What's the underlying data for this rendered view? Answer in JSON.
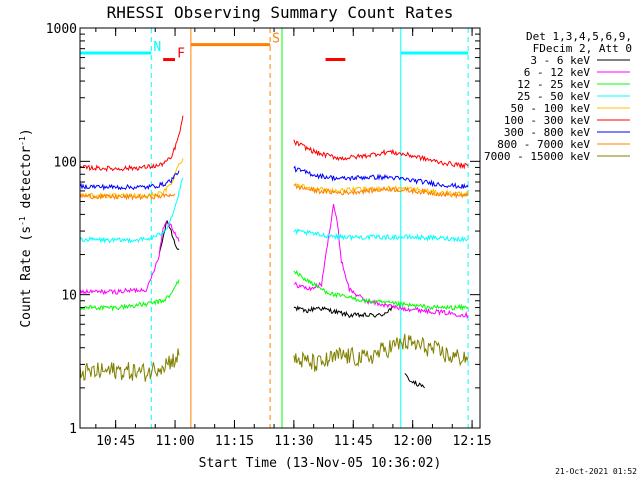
{
  "chart_data": {
    "type": "line",
    "title": "RHESSI Observing Summary Count Rates",
    "xlabel": "Start Time (13-Nov-05 10:36:02)",
    "ylabel_main": "Count Rate (s",
    "ylabel_sup1": "-1",
    "ylabel_mid": " detector",
    "ylabel_sup2": "-1",
    "ylabel_end": ")",
    "date_stamp": "21-Oct-2021 01:52",
    "y_scale": "log",
    "xlim": [
      "10:36",
      "12:17"
    ],
    "ylim": [
      1,
      1000
    ],
    "x_ticks": [
      "10:45",
      "11:00",
      "11:15",
      "11:30",
      "11:45",
      "12:00",
      "12:15"
    ],
    "y_ticks": [
      "1",
      "10",
      "100",
      "1000"
    ],
    "legend_header": [
      "Det 1,3,4,5,6,9,",
      "FDecim 2, Att 0"
    ],
    "legend_placement": "right",
    "series": [
      {
        "name": "3 - 6 keV",
        "color": "#000000",
        "segments": [
          [
            [
              "10:56",
              20
            ],
            [
              "10:57",
              27
            ],
            [
              "10:58",
              36
            ],
            [
              "10:59",
              30
            ],
            [
              "11:00",
              24
            ],
            [
              "11:01",
              22
            ]
          ],
          [
            [
              "11:30",
              8
            ],
            [
              "11:33",
              7.5
            ],
            [
              "11:36",
              8
            ],
            [
              "11:40",
              7.5
            ],
            [
              "11:44",
              7
            ],
            [
              "11:48",
              7
            ],
            [
              "11:52",
              7
            ],
            [
              "11:55",
              8
            ]
          ],
          [
            [
              "11:58",
              2.5
            ],
            [
              "12:00",
              2.2
            ],
            [
              "12:03",
              2
            ]
          ]
        ]
      },
      {
        "name": "6 - 12 keV",
        "color": "#ff00ff",
        "segments": [
          [
            [
              "10:36",
              10.5
            ],
            [
              "10:45",
              10.5
            ],
            [
              "10:53",
              11
            ],
            [
              "10:56",
              20
            ],
            [
              "10:57",
              32
            ],
            [
              "10:58",
              35
            ],
            [
              "10:59",
              33
            ],
            [
              "11:00",
              29
            ],
            [
              "11:01",
              25
            ]
          ],
          [
            [
              "11:30",
              12
            ],
            [
              "11:34",
              11
            ],
            [
              "11:37",
              12
            ],
            [
              "11:39",
              30
            ],
            [
              "11:40",
              48
            ],
            [
              "11:41",
              34
            ],
            [
              "11:42",
              18
            ],
            [
              "11:44",
              11
            ],
            [
              "11:48",
              9
            ],
            [
              "11:56",
              8
            ],
            [
              "12:05",
              7.5
            ],
            [
              "12:14",
              7
            ]
          ]
        ]
      },
      {
        "name": "12 - 25 keV",
        "color": "#00ff00",
        "segments": [
          [
            [
              "10:36",
              8
            ],
            [
              "10:45",
              8
            ],
            [
              "10:53",
              8.5
            ],
            [
              "10:57",
              9
            ],
            [
              "10:59",
              10
            ],
            [
              "11:01",
              13
            ]
          ],
          [
            [
              "11:30",
              15
            ],
            [
              "11:33",
              13
            ],
            [
              "11:37",
              11
            ],
            [
              "11:40",
              10
            ],
            [
              "11:44",
              9.5
            ],
            [
              "11:48",
              9
            ],
            [
              "11:56",
              8.5
            ],
            [
              "12:05",
              8
            ],
            [
              "12:14",
              8
            ]
          ]
        ]
      },
      {
        "name": "25 - 50 keV",
        "color": "#00ffff",
        "segments": [
          [
            [
              "10:36",
              26
            ],
            [
              "10:45",
              25.5
            ],
            [
              "10:53",
              26
            ],
            [
              "10:56",
              28
            ],
            [
              "10:58",
              32
            ],
            [
              "11:00",
              45
            ],
            [
              "11:02",
              75
            ]
          ],
          [
            [
              "11:30",
              30
            ],
            [
              "11:37",
              28
            ],
            [
              "11:44",
              27
            ],
            [
              "11:52",
              27
            ],
            [
              "12:00",
              27
            ],
            [
              "12:07",
              26.5
            ],
            [
              "12:14",
              26
            ]
          ]
        ]
      },
      {
        "name": "50 - 100 keV",
        "color": "#ffbf00",
        "segments": [
          [
            [
              "10:36",
              56
            ],
            [
              "10:45",
              55
            ],
            [
              "10:53",
              55
            ],
            [
              "10:57",
              58
            ],
            [
              "10:59",
              68
            ],
            [
              "11:01",
              95
            ],
            [
              "11:02",
              105
            ]
          ],
          [
            [
              "11:30",
              68
            ],
            [
              "11:35",
              62
            ],
            [
              "11:41",
              60
            ],
            [
              "11:48",
              62
            ],
            [
              "11:54",
              63
            ],
            [
              "12:00",
              62
            ],
            [
              "12:07",
              58
            ],
            [
              "12:14",
              57
            ]
          ]
        ]
      },
      {
        "name": "100 - 300 keV",
        "color": "#ff0000",
        "segments": [
          [
            [
              "10:36",
              90
            ],
            [
              "10:45",
              88
            ],
            [
              "10:52",
              90
            ],
            [
              "10:56",
              93
            ],
            [
              "10:59",
              105
            ],
            [
              "11:01",
              155
            ],
            [
              "11:02",
              220
            ]
          ],
          [
            [
              "11:30",
              140
            ],
            [
              "11:36",
              115
            ],
            [
              "11:42",
              105
            ],
            [
              "11:48",
              110
            ],
            [
              "11:54",
              118
            ],
            [
              "12:00",
              110
            ],
            [
              "12:07",
              98
            ],
            [
              "12:14",
              92
            ]
          ]
        ]
      },
      {
        "name": "300 - 800 keV",
        "color": "#0000ff",
        "segments": [
          [
            [
              "10:36",
              65
            ],
            [
              "10:45",
              64
            ],
            [
              "10:53",
              64
            ],
            [
              "10:57",
              67
            ],
            [
              "10:59",
              72
            ],
            [
              "11:01",
              85
            ]
          ],
          [
            [
              "11:30",
              88
            ],
            [
              "11:36",
              78
            ],
            [
              "11:42",
              74
            ],
            [
              "11:48",
              76
            ],
            [
              "11:54",
              76
            ],
            [
              "12:00",
              72
            ],
            [
              "12:07",
              67
            ],
            [
              "12:14",
              64
            ]
          ]
        ]
      },
      {
        "name": "800 - 7000 keV",
        "color": "#ff8000",
        "segments": [
          [
            [
              "10:36",
              55
            ],
            [
              "10:45",
              54
            ],
            [
              "10:53",
              54
            ],
            [
              "10:57",
              55
            ],
            [
              "11:00",
              57
            ]
          ],
          [
            [
              "11:30",
              65
            ],
            [
              "11:36",
              60
            ],
            [
              "11:42",
              58
            ],
            [
              "11:48",
              60
            ],
            [
              "11:54",
              62
            ],
            [
              "12:00",
              60
            ],
            [
              "12:07",
              57
            ],
            [
              "12:14",
              55
            ]
          ]
        ]
      },
      {
        "name": "7000 - 15000 keV",
        "color": "#808000",
        "segments": [
          [
            [
              "10:36",
              2.6
            ],
            [
              "10:45",
              2.7
            ],
            [
              "10:53",
              2.6
            ],
            [
              "10:56",
              2.9
            ],
            [
              "10:58",
              3.1
            ],
            [
              "11:00",
              3.3
            ],
            [
              "11:01",
              3.5
            ]
          ],
          [
            [
              "11:30",
              3.3
            ],
            [
              "11:36",
              3.0
            ],
            [
              "11:42",
              3.5
            ],
            [
              "11:48",
              3.3
            ],
            [
              "11:54",
              4.0
            ],
            [
              "11:58",
              4.4
            ],
            [
              "12:04",
              4.0
            ],
            [
              "12:10",
              3.4
            ],
            [
              "12:14",
              3.4
            ]
          ]
        ]
      }
    ],
    "flags": [
      {
        "label": "N",
        "color": "#00ffff",
        "y": 650,
        "spans": [
          [
            "10:36",
            "10:54"
          ],
          [
            "11:57",
            "12:14"
          ]
        ]
      },
      {
        "label": "S",
        "color": "#ff8000",
        "y": 750,
        "spans": [
          [
            "11:04",
            "11:24"
          ]
        ]
      },
      {
        "label": "F",
        "color": "#ff0000",
        "y": 580,
        "spans": [
          [
            "10:57",
            "11:00"
          ],
          [
            "11:38",
            "11:43"
          ]
        ]
      }
    ],
    "vertical_markers": [
      {
        "time": "10:36",
        "color": "#00ffff",
        "style": "solid"
      },
      {
        "time": "10:54",
        "color": "#00ffff",
        "style": "dashed"
      },
      {
        "time": "11:04",
        "color": "#ff8000",
        "style": "solid"
      },
      {
        "time": "11:24",
        "color": "#ff8000",
        "style": "dashed"
      },
      {
        "time": "11:27",
        "color": "#00ff00",
        "style": "solid"
      },
      {
        "time": "11:57",
        "color": "#00ffff",
        "style": "solid"
      },
      {
        "time": "12:14",
        "color": "#00ffff",
        "style": "dashed"
      }
    ],
    "grid": false
  }
}
